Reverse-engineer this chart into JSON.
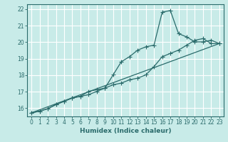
{
  "xlabel": "Humidex (Indice chaleur)",
  "background_color": "#c8ebe8",
  "grid_color": "#ffffff",
  "line_color": "#2a6b6b",
  "xlim": [
    -0.5,
    23.5
  ],
  "ylim": [
    15.5,
    22.3
  ],
  "xticks": [
    0,
    1,
    2,
    3,
    4,
    5,
    6,
    7,
    8,
    9,
    10,
    11,
    12,
    13,
    14,
    15,
    16,
    17,
    18,
    19,
    20,
    21,
    22,
    23
  ],
  "yticks": [
    16,
    17,
    18,
    19,
    20,
    21,
    22
  ],
  "line1_x": [
    0,
    1,
    2,
    3,
    4,
    5,
    6,
    7,
    8,
    9,
    10,
    11,
    12,
    13,
    14,
    15,
    16,
    17,
    18,
    19,
    20,
    21,
    22,
    23
  ],
  "line1_y": [
    15.72,
    15.82,
    15.97,
    16.22,
    16.42,
    16.62,
    16.72,
    17.02,
    17.12,
    17.22,
    18.02,
    18.82,
    19.12,
    19.52,
    19.72,
    19.82,
    21.82,
    21.92,
    20.52,
    20.32,
    20.02,
    20.02,
    20.12,
    19.92
  ],
  "line2_x": [
    0,
    1,
    2,
    3,
    4,
    5,
    6,
    7,
    8,
    9,
    10,
    11,
    12,
    13,
    14,
    15,
    16,
    17,
    18,
    19,
    20,
    21,
    22,
    23
  ],
  "line2_y": [
    15.72,
    15.82,
    15.97,
    16.22,
    16.42,
    16.62,
    16.72,
    16.82,
    17.02,
    17.22,
    17.42,
    17.52,
    17.72,
    17.82,
    18.02,
    18.52,
    19.12,
    19.32,
    19.52,
    19.82,
    20.12,
    20.22,
    19.92,
    19.92
  ],
  "line3_x": [
    0,
    23
  ],
  "line3_y": [
    15.72,
    19.92
  ],
  "marker": "+",
  "marker_size": 4,
  "linewidth": 0.9
}
